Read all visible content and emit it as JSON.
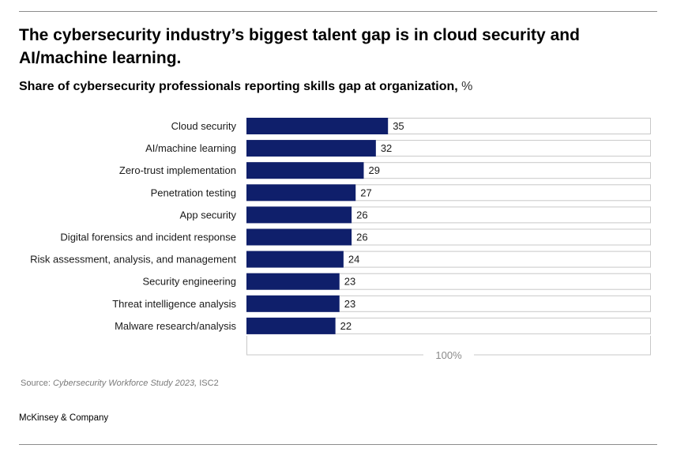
{
  "title": "The cybersecurity industry’s biggest talent gap is in cloud security and AI/machine learning.",
  "subtitle": {
    "main": "Share of cybersecurity professionals reporting skills gap at organization,",
    "unit": "%"
  },
  "source": {
    "prefix": "Source:",
    "study": "Cybersecurity Workforce Study 2023,",
    "org": "ISC2"
  },
  "brand": "McKinsey & Company",
  "colors": {
    "bar_fill": "#0f1f6b",
    "track_border": "#c8c8c8",
    "axis_text": "#8a8a8a",
    "rule": "#8c8c8c"
  },
  "chart_data": {
    "type": "bar",
    "orientation": "horizontal",
    "categories": [
      "Cloud security",
      "AI/machine learning",
      "Zero-trust implementation",
      "Penetration testing",
      "App security",
      "Digital forensics and incident response",
      "Risk assessment, analysis, and management",
      "Security engineering",
      "Threat intelligence analysis",
      "Malware research/analysis"
    ],
    "values": [
      35,
      32,
      29,
      27,
      26,
      26,
      24,
      23,
      23,
      22
    ],
    "xlim": [
      0,
      100
    ],
    "scale_label": "100%",
    "grid": false,
    "legend": "none"
  }
}
